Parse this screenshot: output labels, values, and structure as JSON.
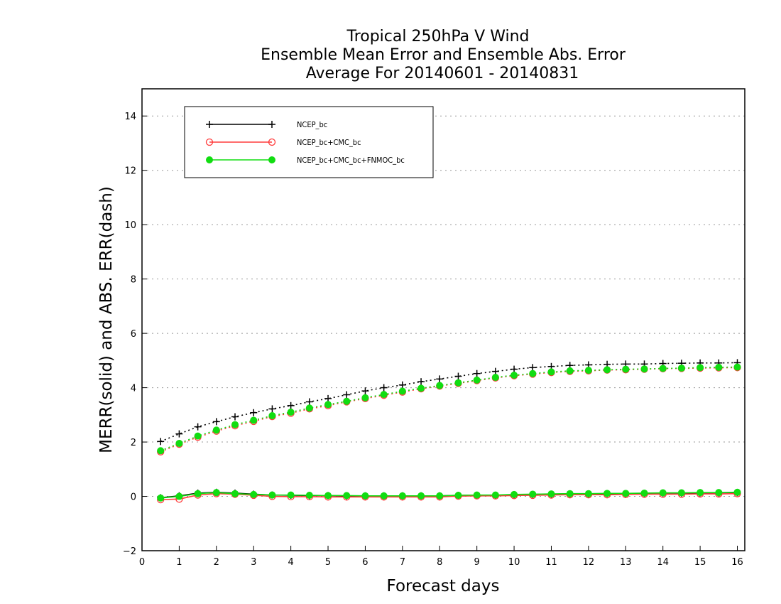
{
  "chart_data": {
    "type": "line",
    "title": [
      "Tropical 250hPa V Wind",
      "Ensemble Mean Error and Ensemble Abs. Error",
      "Average For 20140601 - 20140831"
    ],
    "xlabel": "Forecast days",
    "ylabel": "MERR(solid) and ABS. ERR(dash)",
    "xlim": [
      0,
      16.2
    ],
    "ylim": [
      -2,
      15
    ],
    "xticks": [
      0,
      1,
      2,
      3,
      4,
      5,
      6,
      7,
      8,
      9,
      10,
      11,
      12,
      13,
      14,
      15,
      16
    ],
    "yticks": [
      -2,
      0,
      2,
      4,
      6,
      8,
      10,
      12,
      14
    ],
    "grid": "horizontal dotted",
    "legend_position": "top-left",
    "x": [
      0.5,
      1,
      1.5,
      2,
      2.5,
      3,
      3.5,
      4,
      4.5,
      5,
      5.5,
      6,
      6.5,
      7,
      7.5,
      8,
      8.5,
      9,
      9.5,
      10,
      10.5,
      11,
      11.5,
      12,
      12.5,
      13,
      13.5,
      14,
      14.5,
      15,
      15.5,
      16
    ],
    "series": [
      {
        "name": "NCEP_bc",
        "color": "#000000",
        "marker": "plus",
        "merr": [
          -0.05,
          0.02,
          0.12,
          0.15,
          0.12,
          0.08,
          0.05,
          0.04,
          0.03,
          0.03,
          0.02,
          0.02,
          0.02,
          0.02,
          0.02,
          0.02,
          0.04,
          0.04,
          0.04,
          0.06,
          0.07,
          0.08,
          0.09,
          0.09,
          0.1,
          0.1,
          0.11,
          0.12,
          0.12,
          0.13,
          0.13,
          0.14
        ],
        "abs_err": [
          2.02,
          2.3,
          2.56,
          2.75,
          2.93,
          3.08,
          3.22,
          3.34,
          3.48,
          3.6,
          3.74,
          3.88,
          4.0,
          4.1,
          4.22,
          4.32,
          4.42,
          4.52,
          4.6,
          4.68,
          4.74,
          4.78,
          4.82,
          4.84,
          4.86,
          4.87,
          4.87,
          4.89,
          4.9,
          4.91,
          4.91,
          4.92
        ]
      },
      {
        "name": "NCEP_bc+CMC_bc",
        "color": "#ff3a3a",
        "marker": "open-circle",
        "merr": [
          -0.12,
          -0.1,
          0.05,
          0.1,
          0.08,
          0.04,
          0.0,
          -0.01,
          -0.01,
          -0.02,
          -0.02,
          -0.02,
          -0.02,
          -0.02,
          -0.02,
          -0.02,
          0.01,
          0.02,
          0.02,
          0.03,
          0.04,
          0.05,
          0.06,
          0.06,
          0.06,
          0.07,
          0.08,
          0.08,
          0.08,
          0.09,
          0.09,
          0.1
        ],
        "abs_err": [
          1.64,
          1.92,
          2.18,
          2.4,
          2.6,
          2.76,
          2.94,
          3.06,
          3.22,
          3.34,
          3.48,
          3.6,
          3.72,
          3.84,
          3.96,
          4.06,
          4.16,
          4.26,
          4.36,
          4.44,
          4.5,
          4.56,
          4.6,
          4.62,
          4.65,
          4.66,
          4.68,
          4.7,
          4.71,
          4.72,
          4.73,
          4.74
        ]
      },
      {
        "name": "NCEP_bc+CMC_bc+FNMOC_bc",
        "color": "#11dd11",
        "marker": "filled-circle",
        "merr": [
          -0.06,
          0.0,
          0.1,
          0.14,
          0.1,
          0.07,
          0.05,
          0.05,
          0.04,
          0.03,
          0.03,
          0.02,
          0.02,
          0.02,
          0.02,
          0.02,
          0.04,
          0.05,
          0.05,
          0.07,
          0.08,
          0.09,
          0.1,
          0.1,
          0.11,
          0.11,
          0.12,
          0.13,
          0.13,
          0.14,
          0.14,
          0.15
        ],
        "abs_err": [
          1.68,
          1.95,
          2.22,
          2.44,
          2.64,
          2.8,
          2.97,
          3.1,
          3.25,
          3.38,
          3.5,
          3.63,
          3.75,
          3.87,
          3.98,
          4.08,
          4.18,
          4.28,
          4.38,
          4.46,
          4.52,
          4.58,
          4.62,
          4.64,
          4.66,
          4.68,
          4.69,
          4.71,
          4.72,
          4.74,
          4.75,
          4.76
        ]
      }
    ]
  }
}
